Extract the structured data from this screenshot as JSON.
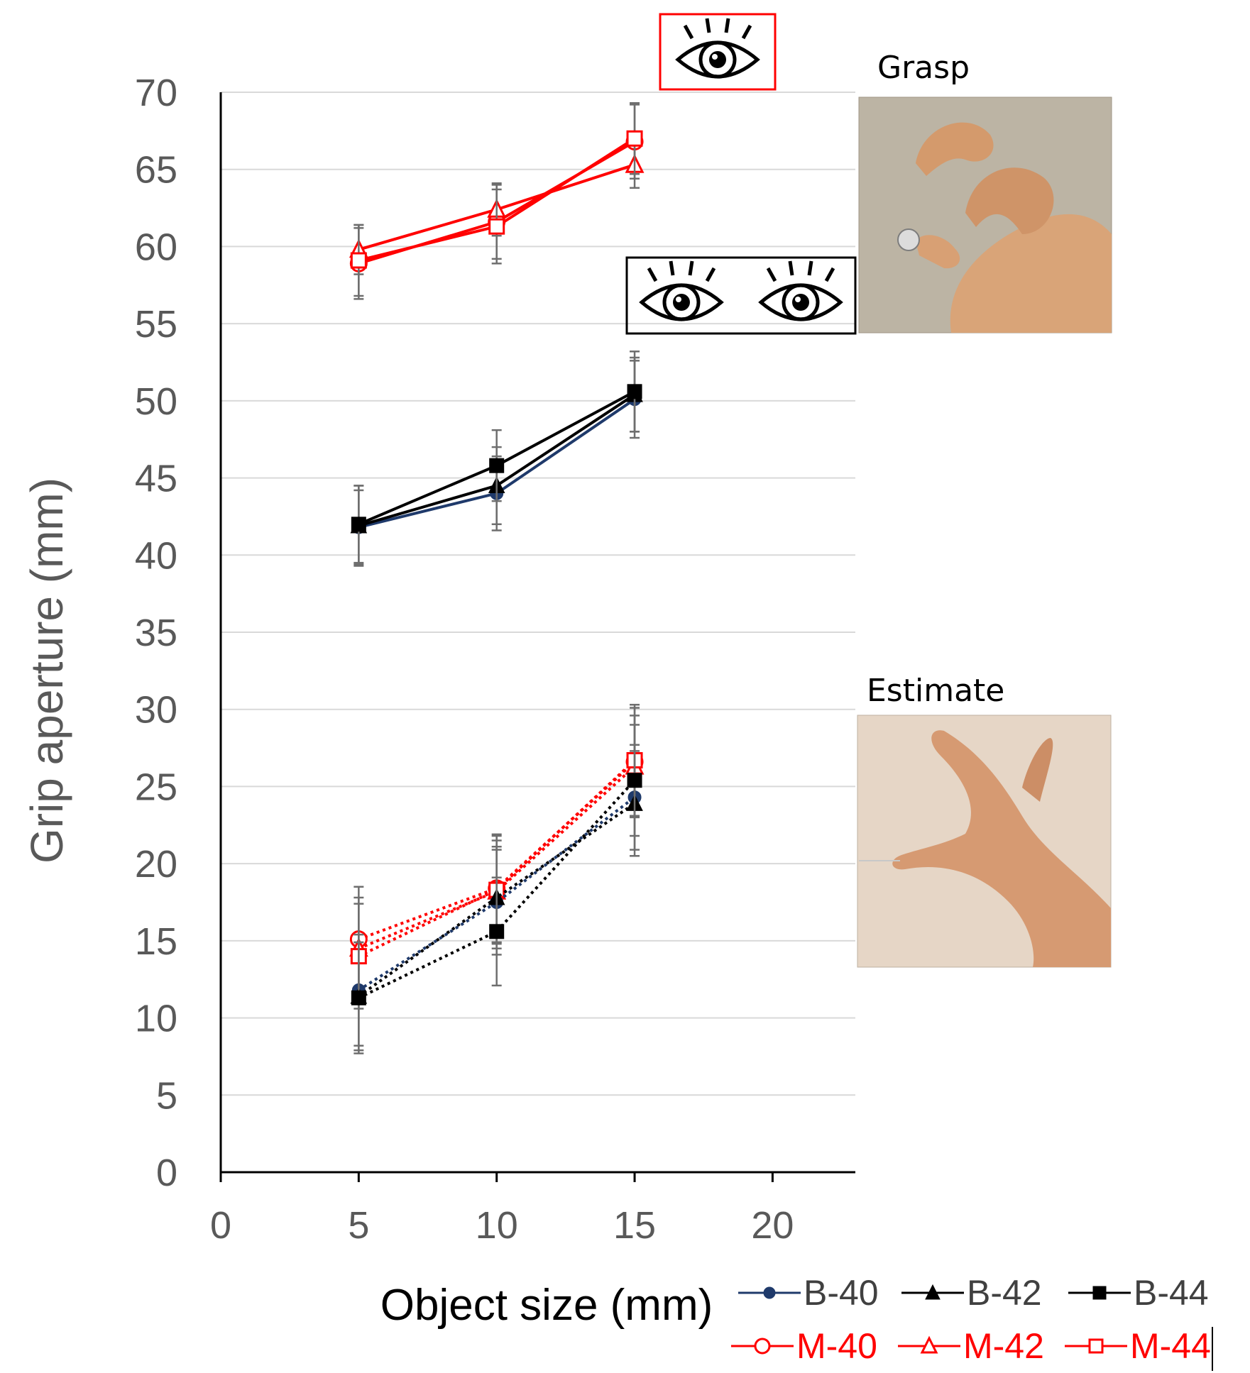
{
  "chart_data": {
    "type": "line",
    "xlabel": "Object size (mm)",
    "ylabel": "Grip aperture (mm)",
    "xlim": [
      0,
      23
    ],
    "ylim": [
      0,
      70
    ],
    "x_ticks": [
      "0",
      "5",
      "10",
      "15",
      "20"
    ],
    "y_ticks": [
      "0",
      "5",
      "10",
      "15",
      "20",
      "25",
      "30",
      "35",
      "40",
      "45",
      "50",
      "55",
      "60",
      "65",
      "70"
    ],
    "grid": "horizontal",
    "x": [
      5,
      10,
      15
    ],
    "series_groups": [
      {
        "name": "Grasp",
        "condition": "monocular",
        "series": [
          {
            "name": "M-40",
            "color": "#ff0000",
            "marker": "circle-open",
            "style": "solid",
            "values": [
              58.9,
              61.6,
              66.8
            ],
            "errors": [
              2.3,
              2.4,
              2.4
            ]
          },
          {
            "name": "M-42",
            "color": "#ff0000",
            "marker": "triangle-open",
            "style": "solid",
            "values": [
              59.8,
              62.4,
              65.3
            ],
            "errors": [
              1.6,
              1.7,
              1.5
            ]
          },
          {
            "name": "M-44",
            "color": "#ff0000",
            "marker": "square-open",
            "style": "solid",
            "values": [
              59.1,
              61.3,
              67.0
            ],
            "errors": [
              2.3,
              2.4,
              2.3
            ]
          }
        ]
      },
      {
        "name": "Grasp",
        "condition": "binocular",
        "series": [
          {
            "name": "B-40",
            "color": "#1f3a6b",
            "marker": "circle-filled",
            "style": "solid",
            "values": [
              41.8,
              44.0,
              50.1
            ],
            "errors": [
              2.4,
              2.4,
              2.5
            ]
          },
          {
            "name": "B-42",
            "color": "#000000",
            "marker": "triangle-filled",
            "style": "solid",
            "values": [
              41.9,
              44.5,
              50.4
            ],
            "errors": [
              2.6,
              2.5,
              2.4
            ]
          },
          {
            "name": "B-44",
            "color": "#000000",
            "marker": "square-filled",
            "style": "solid",
            "values": [
              42.0,
              45.8,
              50.6
            ],
            "errors": [
              2.5,
              2.3,
              2.6
            ]
          }
        ]
      },
      {
        "name": "Estimate",
        "condition": "monocular",
        "series": [
          {
            "name": "M-40",
            "color": "#ff0000",
            "marker": "circle-open",
            "style": "dotted",
            "values": [
              15.1,
              18.4,
              26.6
            ],
            "errors": [
              3.4,
              3.5,
              3.5
            ]
          },
          {
            "name": "M-42",
            "color": "#ff0000",
            "marker": "triangle-open",
            "style": "dotted",
            "values": [
              14.5,
              18.2,
              26.3
            ],
            "errors": [
              3.3,
              3.3,
              3.3
            ]
          },
          {
            "name": "M-44",
            "color": "#ff0000",
            "marker": "square-open",
            "style": "dotted",
            "values": [
              14.0,
              18.3,
              26.7
            ],
            "errors": [
              3.4,
              3.5,
              3.6
            ]
          }
        ]
      },
      {
        "name": "Estimate",
        "condition": "binocular",
        "series": [
          {
            "name": "B-40",
            "color": "#1f3a6b",
            "marker": "circle-filled",
            "style": "dotted",
            "values": [
              11.8,
              17.5,
              24.3
            ],
            "errors": [
              3.6,
              3.4,
              3.4
            ]
          },
          {
            "name": "B-42",
            "color": "#000000",
            "marker": "triangle-filled",
            "style": "dotted",
            "values": [
              11.4,
              17.8,
              23.9
            ],
            "errors": [
              3.5,
              3.3,
              3.4
            ]
          },
          {
            "name": "B-44",
            "color": "#000000",
            "marker": "square-filled",
            "style": "dotted",
            "values": [
              11.3,
              15.6,
              25.4
            ],
            "errors": [
              3.6,
              3.5,
              3.6
            ]
          }
        ]
      }
    ],
    "legend": {
      "position": "bottom-right",
      "entries": [
        {
          "name": "B-40",
          "color": "#1f3a6b",
          "marker": "circle-filled"
        },
        {
          "name": "B-42",
          "color": "#000000",
          "marker": "triangle-filled"
        },
        {
          "name": "B-44",
          "color": "#000000",
          "marker": "square-filled"
        },
        {
          "name": "M-40",
          "color": "#ff0000",
          "marker": "circle-open"
        },
        {
          "name": "M-42",
          "color": "#ff0000",
          "marker": "triangle-open"
        },
        {
          "name": "M-44",
          "color": "#ff0000",
          "marker": "square-open"
        }
      ]
    }
  },
  "panels": {
    "grasp_caption": "Grasp",
    "estimate_caption": "Estimate"
  },
  "colors": {
    "monocular": "#ff0000",
    "binocular": "#000000",
    "grid": "#d9d9d9",
    "text": "#595959"
  }
}
